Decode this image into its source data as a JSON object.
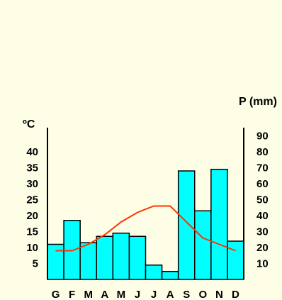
{
  "chart_data": {
    "type": "bar",
    "title": "",
    "categories": [
      "G",
      "F",
      "M",
      "A",
      "M",
      "J",
      "J",
      "A",
      "S",
      "O",
      "N",
      "D"
    ],
    "series": [
      {
        "name": "P (mm)",
        "type": "bar",
        "axis": "right",
        "values": [
          22,
          37,
          23,
          27,
          29,
          27,
          9,
          5,
          68,
          43,
          69,
          24
        ]
      },
      {
        "name": "ºC",
        "type": "line",
        "axis": "left",
        "values": [
          9,
          9,
          11,
          14,
          18,
          21,
          23,
          23,
          18,
          13,
          11,
          9
        ]
      }
    ],
    "left_axis": {
      "label": "ºC",
      "ticks": [
        5,
        10,
        15,
        20,
        25,
        30,
        35,
        40
      ],
      "range": [
        0,
        45
      ]
    },
    "right_axis": {
      "label": "P (mm)",
      "ticks": [
        10,
        20,
        30,
        40,
        50,
        60,
        70,
        80,
        90
      ],
      "range": [
        0,
        90
      ]
    },
    "colors": {
      "background": "#fefde6",
      "bar_fill": "#00ffff",
      "bar_stroke": "#000000",
      "line": "#ff3300"
    },
    "grid": false,
    "legend": "none"
  }
}
